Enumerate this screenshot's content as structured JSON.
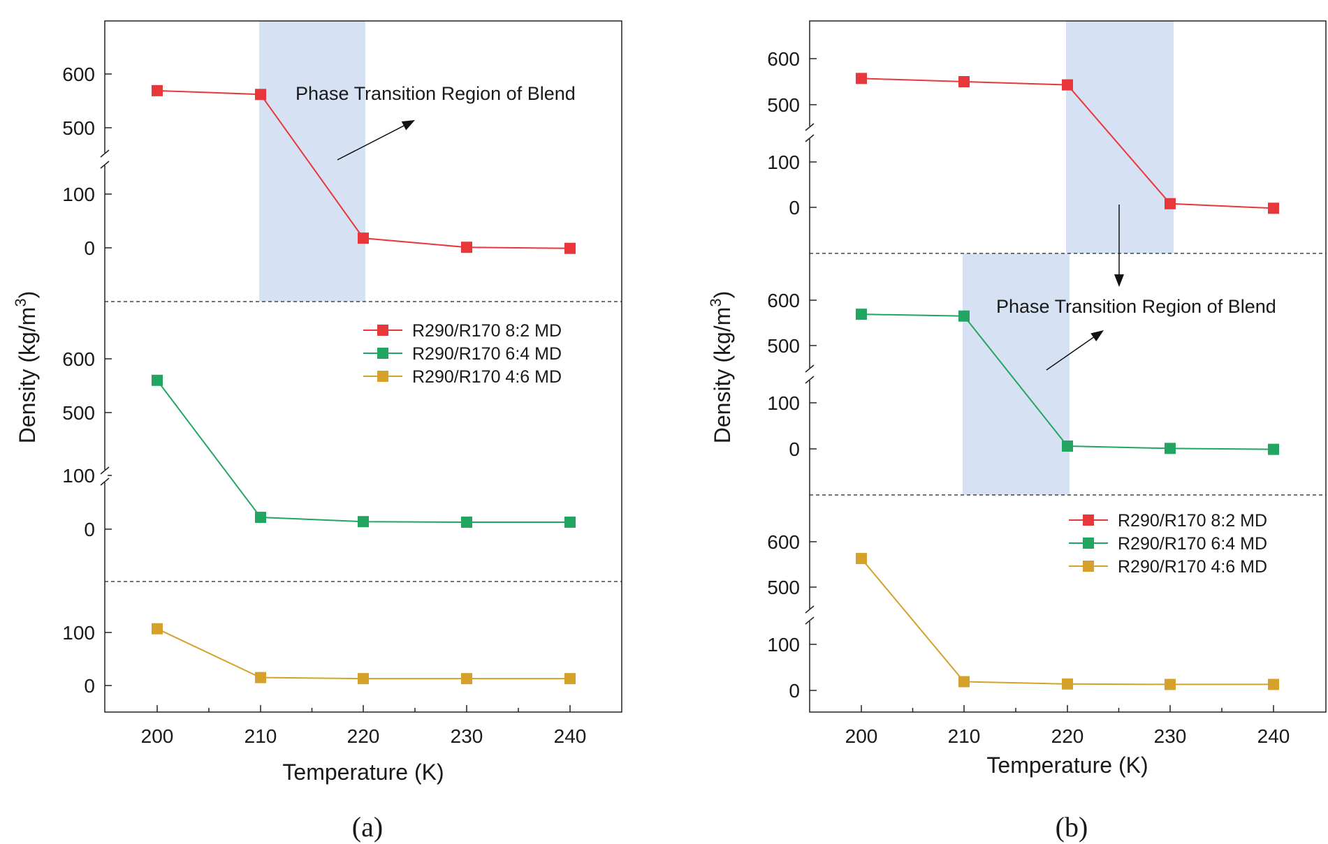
{
  "chart_data": [
    {
      "panel": "a",
      "type": "line",
      "caption": "(a)",
      "xlabel": "Temperature (K)",
      "ylabel_main": "Density (kg/m",
      "ylabel_sup": "3",
      "ylabel_close": ")",
      "x": [
        200,
        210,
        220,
        230,
        240
      ],
      "x_ticks": [
        "200",
        "210",
        "220",
        "230",
        "240"
      ],
      "xlim": [
        195,
        245
      ],
      "series": [
        {
          "name": "R290/R170 8:2 MD",
          "color": "#e8373a",
          "values": [
            569,
            562,
            18,
            1,
            -1
          ]
        },
        {
          "name": "R290/R170 6:4 MD",
          "color": "#23a562",
          "values": [
            560,
            22,
            14,
            13,
            13
          ]
        },
        {
          "name": "R290/R170 4:6 MD",
          "color": "#d6a12a",
          "values": [
            107,
            15,
            13,
            13,
            13
          ]
        }
      ],
      "subplots": [
        {
          "series": 0,
          "y_ticks": [
            "600",
            "500",
            "100",
            "0"
          ],
          "y_tick_values": [
            600,
            500,
            100,
            0
          ],
          "broken_axis": true
        },
        {
          "series": 1,
          "y_ticks": [
            "600",
            "500",
            "100",
            "0"
          ],
          "y_tick_values": [
            600,
            500,
            100,
            0
          ],
          "broken_axis": true
        },
        {
          "series": 2,
          "y_ticks": [
            "100",
            "0"
          ],
          "y_tick_values": [
            100,
            0
          ],
          "broken_axis": false
        }
      ],
      "highlight": {
        "label": "Phase Transition Region of Blend",
        "x_range": [
          210,
          220
        ],
        "applies_to": "R290/R170 8:2 MD"
      },
      "legend_position": "middle-right"
    },
    {
      "panel": "b",
      "type": "line",
      "caption": "(b)",
      "xlabel": "Temperature (K)",
      "ylabel_main": "Density (kg/m",
      "ylabel_sup": "3",
      "ylabel_close": ")",
      "x": [
        200,
        210,
        220,
        230,
        240
      ],
      "x_ticks": [
        "200",
        "210",
        "220",
        "230",
        "240"
      ],
      "xlim": [
        195,
        245
      ],
      "series": [
        {
          "name": "R290/R170 8:2 MD",
          "color": "#e8373a",
          "values": [
            557,
            550,
            543,
            8,
            -2
          ]
        },
        {
          "name": "R290/R170 6:4 MD",
          "color": "#23a562",
          "values": [
            569,
            565,
            6,
            1,
            -1
          ]
        },
        {
          "name": "R290/R170 4:6 MD",
          "color": "#d6a12a",
          "values": [
            563,
            19,
            14,
            13,
            13
          ]
        }
      ],
      "subplots": [
        {
          "series": 0,
          "y_ticks": [
            "600",
            "500",
            "100",
            "0"
          ],
          "y_tick_values": [
            600,
            500,
            100,
            0
          ],
          "broken_axis": true
        },
        {
          "series": 1,
          "y_ticks": [
            "600",
            "500",
            "100",
            "0"
          ],
          "y_tick_values": [
            600,
            500,
            100,
            0
          ],
          "broken_axis": true
        },
        {
          "series": 2,
          "y_ticks": [
            "600",
            "500",
            "100",
            "0"
          ],
          "y_tick_values": [
            600,
            500,
            100,
            0
          ],
          "broken_axis": true
        }
      ],
      "highlights": [
        {
          "x_range": [
            220,
            230
          ],
          "applies_to": "R290/R170 8:2 MD"
        },
        {
          "x_range": [
            210,
            220
          ],
          "applies_to": "R290/R170 6:4 MD"
        }
      ],
      "highlight_label": "Phase Transition Region of Blend",
      "legend_position": "bottom-right"
    }
  ]
}
